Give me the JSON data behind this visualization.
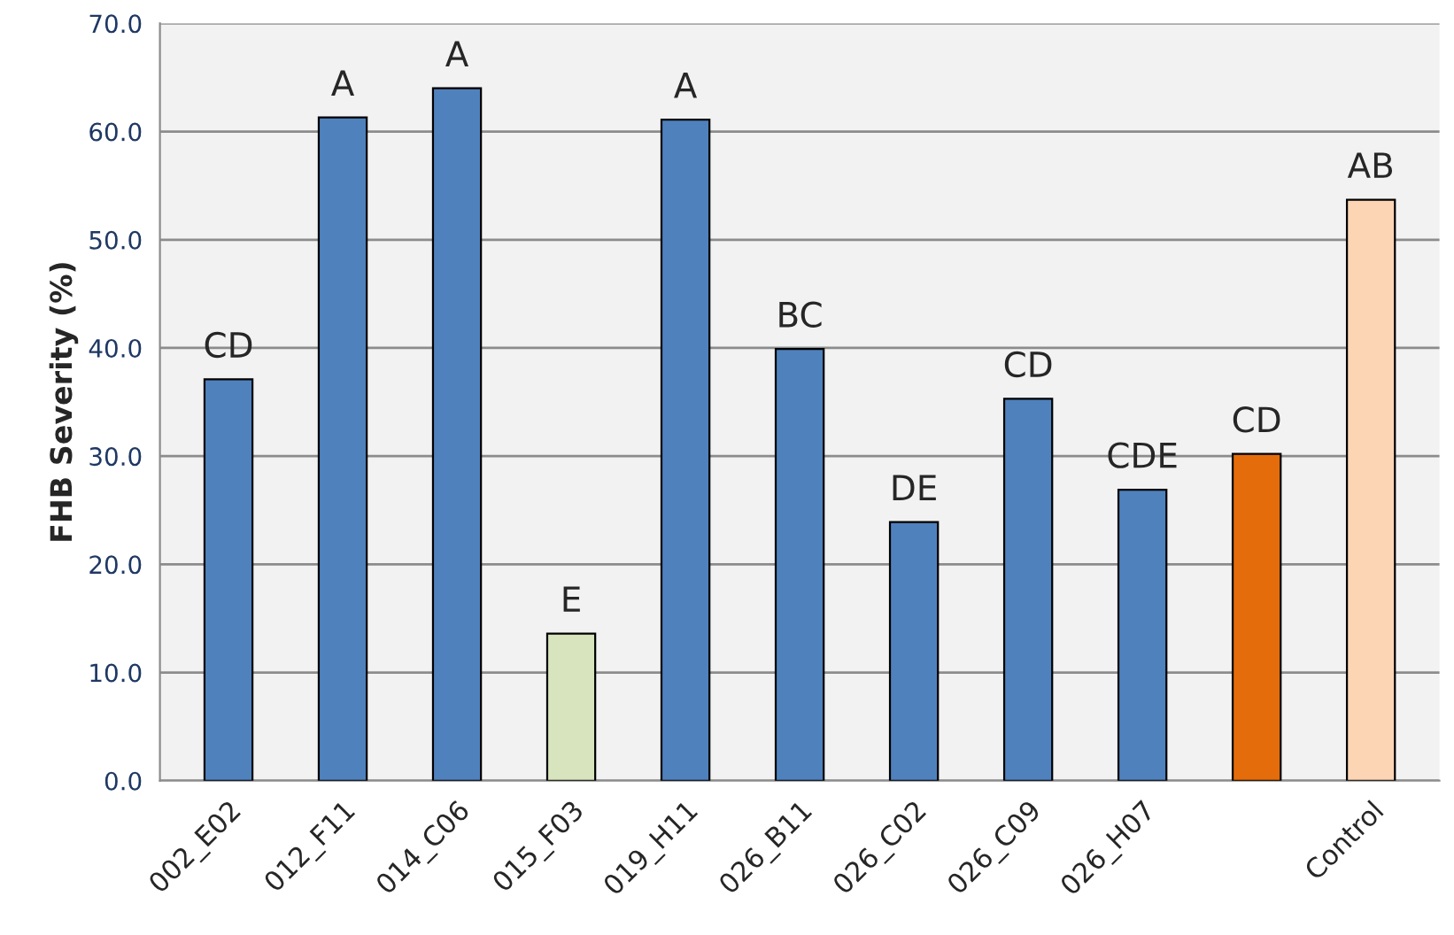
{
  "chart_data": {
    "type": "bar",
    "ylabel": "FHB Severity (%)",
    "categories": [
      "002_E02",
      "012_F11",
      "014_C06",
      "015_F03",
      "019_H11",
      "026_B11",
      "026_C02",
      "026_C09",
      "026_H07",
      null,
      "Control"
    ],
    "values": [
      37.1,
      61.3,
      64.0,
      13.6,
      61.1,
      39.9,
      23.9,
      35.3,
      26.9,
      30.2,
      53.7
    ],
    "colors": [
      "#4f81bd",
      "#4f81bd",
      "#4f81bd",
      "#d7e4bd",
      "#4f81bd",
      "#4f81bd",
      "#4f81bd",
      "#4f81bd",
      "#4f81bd",
      "#e46c0a",
      "#fcd5b5"
    ],
    "value_labels": [
      "CD",
      "A",
      "A",
      "E",
      "A",
      "BC",
      "DE",
      "CD",
      "CDE",
      "CD",
      "AB"
    ],
    "ylim": [
      0,
      70
    ],
    "yticks": [
      {
        "value": 0,
        "label": "0.0"
      },
      {
        "value": 10,
        "label": "10.0"
      },
      {
        "value": 20,
        "label": "20.0"
      },
      {
        "value": 30,
        "label": "30.0"
      },
      {
        "value": 40,
        "label": "40.0"
      },
      {
        "value": 50,
        "label": "50.0"
      },
      {
        "value": 60,
        "label": "60.0"
      },
      {
        "value": 70,
        "label": "70.0"
      }
    ],
    "grid": "y",
    "legend": false
  }
}
